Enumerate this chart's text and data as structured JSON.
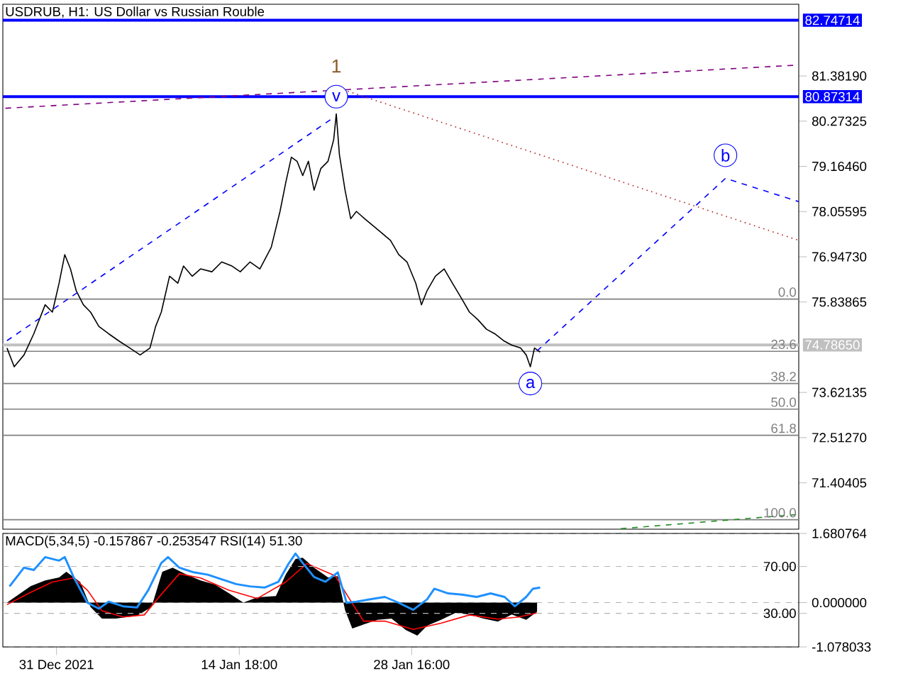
{
  "chart_data": [
    {
      "type": "line",
      "title": "USDRUB, H1:  US Dollar vs Russian Rouble",
      "xlim": [
        "2021-12-26T16:00",
        "2022-02-28T22:00"
      ],
      "ylim": [
        70.267,
        83.14
      ],
      "tick_labels": "y",
      "yticks": [
        {
          "value": 81.3819,
          "label": "81.38190"
        },
        {
          "value": 80.27325,
          "label": "80.27325"
        },
        {
          "value": 79.1646,
          "label": "79.16460"
        },
        {
          "value": 78.05595,
          "label": "78.05595"
        },
        {
          "value": 76.9473,
          "label": "76.94730"
        },
        {
          "value": 75.83865,
          "label": "75.83865"
        },
        {
          "value": 73.62135,
          "label": "73.62135"
        },
        {
          "value": 72.5127,
          "label": "72.51270"
        },
        {
          "value": 71.40405,
          "label": "71.40405"
        }
      ],
      "series": [
        {
          "color": "#000000",
          "line_style": "solid",
          "x": [
            "2021-12-27T00:00",
            "2021-12-27T14:00",
            "2021-12-28T09:00",
            "2021-12-29T04:00",
            "2021-12-30T02:00",
            "2021-12-30T16:00",
            "2021-12-31T05:00",
            "2021-12-31T16:00",
            "2022-01-01T03:00",
            "2022-01-01T14:00",
            "2022-01-02T04:00",
            "2022-01-02T18:00",
            "2022-01-03T10:00",
            "2022-01-04T05:00",
            "2022-01-05T00:00",
            "2022-01-05T22:00",
            "2022-01-06T18:00",
            "2022-01-07T13:00",
            "2022-01-08T00:00",
            "2022-01-08T11:00",
            "2022-01-09T03:00",
            "2022-01-09T19:00",
            "2022-01-10T06:00",
            "2022-01-10T23:00",
            "2022-01-11T15:00",
            "2022-01-12T13:00",
            "2022-01-13T08:00",
            "2022-01-14T04:00",
            "2022-01-14T20:00",
            "2022-01-15T15:00",
            "2022-01-16T10:00",
            "2022-01-17T08:00",
            "2022-01-18T01:00",
            "2022-01-18T12:00",
            "2022-01-18T23:00",
            "2022-01-19T10:00",
            "2022-01-19T21:00",
            "2022-01-20T08:00",
            "2022-01-20T19:00",
            "2022-01-21T08:00",
            "2022-01-21T22:00",
            "2022-01-22T09:00",
            "2022-01-22T14:00",
            "2022-01-22T20:00",
            "2022-01-23T07:00",
            "2022-01-23T18:00",
            "2022-01-24T05:00",
            "2022-01-24T21:00",
            "2022-01-25T14:00",
            "2022-01-26T06:00",
            "2022-01-26T23:00",
            "2022-01-27T15:00",
            "2022-01-28T07:00",
            "2022-01-29T00:00",
            "2022-01-29T11:00",
            "2022-01-29T22:00",
            "2022-01-30T14:00",
            "2022-01-31T07:00",
            "2022-01-31T23:00",
            "2022-02-01T16:00",
            "2022-02-02T08:00",
            "2022-02-03T00:00",
            "2022-02-03T17:00",
            "2022-02-04T09:00",
            "2022-02-05T02:00",
            "2022-02-05T18:00",
            "2022-02-06T11:00",
            "2022-02-06T22:00",
            "2022-02-07T06:00",
            "2022-02-07T14:00",
            "2022-02-08T01:00"
          ],
          "values": [
            74.71,
            74.25,
            74.54,
            75.06,
            75.77,
            75.59,
            76.3,
            77.0,
            76.65,
            76.12,
            75.77,
            75.59,
            75.24,
            75.06,
            74.89,
            74.71,
            74.54,
            74.71,
            75.24,
            75.59,
            76.47,
            76.3,
            76.72,
            76.47,
            76.65,
            76.58,
            76.82,
            76.72,
            76.58,
            76.82,
            76.65,
            77.18,
            78.06,
            78.76,
            79.39,
            79.29,
            78.94,
            79.29,
            78.58,
            79.11,
            79.29,
            79.82,
            80.45,
            79.46,
            78.58,
            77.88,
            78.06,
            77.88,
            77.7,
            77.53,
            77.35,
            77.0,
            76.82,
            76.3,
            75.77,
            76.12,
            76.47,
            76.65,
            76.3,
            75.94,
            75.59,
            75.41,
            75.17,
            75.06,
            74.89,
            74.78,
            74.71,
            74.54,
            74.25,
            74.71,
            74.61
          ]
        },
        {
          "color": "#0000ff",
          "line_style": "dashed",
          "x": [
            "2021-12-27T00:00",
            "2022-01-22T03:00"
          ],
          "values": [
            74.89,
            80.31
          ]
        },
        {
          "color": "#800080",
          "line_style": "dashed",
          "x": [
            "2021-12-26T21:00",
            "2022-02-28T22:00"
          ],
          "values": [
            80.59,
            81.65
          ]
        },
        {
          "color": "#b22222",
          "line_style": "dotted",
          "x": [
            "2022-01-22T09:00",
            "2022-02-28T22:00"
          ],
          "values": [
            81.12,
            77.35
          ]
        },
        {
          "color": "#0000ff",
          "line_style": "dashed",
          "x": [
            "2022-02-07T19:00",
            "2022-02-23T00:00",
            "2022-02-28T22:00"
          ],
          "values": [
            74.64,
            78.87,
            78.3
          ]
        },
        {
          "color": "#228b22",
          "line_style": "dashed",
          "x": [
            "2022-02-14T13:00",
            "2022-02-28T22:00"
          ],
          "values": [
            70.28,
            70.63
          ]
        }
      ],
      "ref_lines": [
        {
          "axis": "y",
          "value": 82.74714,
          "label": "82.74714",
          "color": "#0000ff"
        },
        {
          "axis": "y",
          "value": 80.87314,
          "label": "80.87314",
          "color": "#0000ff"
        },
        {
          "axis": "y",
          "value": 74.7865,
          "label": "74.78650",
          "color": "#c0c0c0"
        },
        {
          "axis": "y",
          "value": 75.91
        },
        {
          "axis": "y",
          "value": 74.63
        },
        {
          "axis": "y",
          "value": 73.84
        },
        {
          "axis": "y",
          "value": 73.21
        },
        {
          "axis": "y",
          "value": 72.57
        },
        {
          "axis": "y",
          "value": 70.5
        }
      ],
      "annotations": [
        "1",
        {
          "text": "v",
          "x": "2022-01-22T14:00",
          "y": 80.87314
        },
        {
          "text": "a",
          "x": "2022-02-07T06:00",
          "y": 73.84
        },
        {
          "text": "b",
          "x": "2022-02-23T00:00",
          "y": 78.87
        },
        {
          "text": "0.0",
          "x": "2022-02-28T22:00",
          "y": 75.91
        },
        {
          "text": "23.6",
          "x": "2022-02-28T22:00",
          "y": 74.63
        },
        {
          "text": "38.2",
          "x": "2022-02-28T22:00",
          "y": 73.84
        },
        {
          "text": "50.0",
          "x": "2022-02-28T22:00",
          "y": 73.21
        },
        {
          "text": "61.8",
          "x": "2022-02-28T22:00",
          "y": 72.57
        },
        {
          "text": "100.0",
          "x": "2022-02-28T22:00",
          "y": 70.5
        }
      ]
    },
    {
      "type": "area",
      "title": "MACD(5,34,5) -0.157867 -0.253547 RSI(14) 51.30",
      "xlim": [
        "2021-12-26T16:00",
        "2022-02-28T22:00"
      ],
      "ylim": [
        -1.078033,
        1.680764
      ],
      "y2lim": [
        1.3,
        98.2
      ],
      "grid": "y",
      "xticks": [
        {
          "value": "2021-12-31",
          "label": "31 Dec 2021"
        },
        {
          "value": "2022-01-14T18:00",
          "label": "14 Jan 18:00"
        },
        {
          "value": "2022-01-28T16:00",
          "label": "28 Jan 16:00"
        }
      ],
      "yticks": [
        {
          "value": 1.680764,
          "label": "1.680764"
        },
        {
          "value": 0,
          "label": "0.000000"
        },
        {
          "value": -1.078033,
          "label": "-1.078033"
        }
      ],
      "y2ticks": [
        {
          "value": 70,
          "label": "70.00"
        },
        {
          "value": 30,
          "label": "30.00"
        }
      ],
      "series": [
        {
          "type": "area",
          "color": "#000000",
          "x": [
            "2021-12-27T00:00",
            "2021-12-28T22:00",
            "2021-12-30T02:00",
            "2021-12-31T05:00",
            "2021-12-31T19:00",
            "2022-01-01T22:00",
            "2022-01-02T18:00",
            "2022-01-03T16:00",
            "2022-01-04T19:00",
            "2022-01-06T12:00",
            "2022-01-07T16:00",
            "2022-01-08T13:00",
            "2022-01-09T09:00",
            "2022-01-10T12:00",
            "2022-01-11T15:00",
            "2022-01-12T19:00",
            "2022-01-13T22:00",
            "2022-01-15T02:00",
            "2022-01-16T05:00",
            "2022-01-17T17:00",
            "2022-01-18T12:00",
            "2022-01-19T07:00",
            "2022-01-19T21:00",
            "2022-01-20T19:00",
            "2022-01-21T22:00",
            "2022-01-22T17:00",
            "2022-01-23T07:00",
            "2022-01-23T21:00",
            "2022-01-24T19:00",
            "2022-01-25T22:00",
            "2022-01-27T01:00",
            "2022-01-28T05:00",
            "2022-01-29T03:00",
            "2022-01-29T22:00",
            "2022-01-31T01:00",
            "2022-02-01T05:00",
            "2022-02-02T08:00",
            "2022-02-03T11:00",
            "2022-02-04T15:00",
            "2022-02-05T18:00",
            "2022-02-06T22:00",
            "2022-02-07T19:00"
          ],
          "values": [
            0,
            0.4,
            0.54,
            0.61,
            0.75,
            0.5,
            -0.11,
            -0.39,
            -0.39,
            -0.32,
            -0.11,
            0.75,
            0.85,
            0.68,
            0.54,
            0.44,
            0.23,
            0,
            0.13,
            0.16,
            0.68,
            1.06,
            1.09,
            0.85,
            0.61,
            0.64,
            -0.18,
            -0.63,
            -0.53,
            -0.42,
            -0.39,
            -0.67,
            -0.8,
            -0.56,
            -0.42,
            -0.25,
            -0.29,
            -0.39,
            -0.46,
            -0.29,
            -0.42,
            -0.22
          ]
        },
        {
          "type": "line",
          "color": "#ff0000",
          "x": [
            "2021-12-27T00:00",
            "2021-12-28T22:00",
            "2021-12-30T16:00",
            "2022-01-01T09:00",
            "2022-01-02T12:00",
            "2022-01-03T16:00",
            "2022-01-05T09:00",
            "2022-01-07T02:00",
            "2022-01-08T11:00",
            "2022-01-09T22:00",
            "2022-01-11T15:00",
            "2022-01-13T22:00",
            "2022-01-16T05:00",
            "2022-01-18T12:00",
            "2022-01-20T05:00",
            "2022-01-22T12:00",
            "2022-01-23T15:00",
            "2022-01-24T19:00",
            "2022-01-26T12:00",
            "2022-01-28T19:00",
            "2022-01-31T01:00",
            "2022-02-02T08:00",
            "2022-02-04T15:00",
            "2022-02-06T08:00",
            "2022-02-07T19:00"
          ],
          "values": [
            -0.05,
            0.25,
            0.5,
            0.6,
            0.3,
            -0.2,
            -0.35,
            -0.3,
            0.2,
            0.7,
            0.6,
            0.3,
            0.1,
            0.5,
            0.95,
            0.65,
            0.1,
            -0.45,
            -0.45,
            -0.65,
            -0.5,
            -0.3,
            -0.4,
            -0.35,
            -0.25
          ]
        },
        {
          "type": "line",
          "axis": "y2",
          "color": "#1e90ff",
          "x": [
            "2021-12-27T05:00",
            "2021-12-28T09:00",
            "2021-12-29T04:00",
            "2021-12-30T02:00",
            "2021-12-31T05:00",
            "2021-12-31T16:00",
            "2022-01-01T09:00",
            "2022-01-02T12:00",
            "2022-01-03T10:00",
            "2022-01-04T05:00",
            "2022-01-05T09:00",
            "2022-01-06T12:00",
            "2022-01-07T10:00",
            "2022-01-08T11:00",
            "2022-01-09T00:00",
            "2022-01-09T22:00",
            "2022-01-11T02:00",
            "2022-01-12T05:00",
            "2022-01-13T08:00",
            "2022-01-14T12:00",
            "2022-01-15T15:00",
            "2022-01-16T19:00",
            "2022-01-17T22:00",
            "2022-01-18T17:00",
            "2022-01-19T07:00",
            "2022-01-19T21:00",
            "2022-01-20T19:00",
            "2022-01-21T17:00",
            "2022-01-22T17:00",
            "2022-01-23T10:00",
            "2022-01-24T05:00",
            "2022-01-25T08:00",
            "2022-01-26T12:00",
            "2022-01-27T15:00",
            "2022-01-28T19:00",
            "2022-01-29T22:00",
            "2022-01-30T12:00",
            "2022-01-31T15:00",
            "2022-02-01T18:00",
            "2022-02-02T22:00",
            "2022-02-04T01:00",
            "2022-02-05T04:00",
            "2022-02-06T00:00",
            "2022-02-06T22:00",
            "2022-02-07T11:00",
            "2022-02-08T01:00"
          ],
          "values": [
            53,
            69,
            67,
            78,
            75,
            78,
            61,
            39,
            34,
            40,
            36,
            35,
            50,
            73,
            78,
            69,
            65,
            63,
            59,
            55,
            53,
            52,
            57,
            72,
            81,
            73,
            61,
            57,
            65,
            39,
            40,
            42,
            44,
            39,
            33,
            42,
            51,
            47,
            46,
            44,
            47,
            44,
            36,
            44,
            51,
            52
          ]
        }
      ]
    }
  ]
}
